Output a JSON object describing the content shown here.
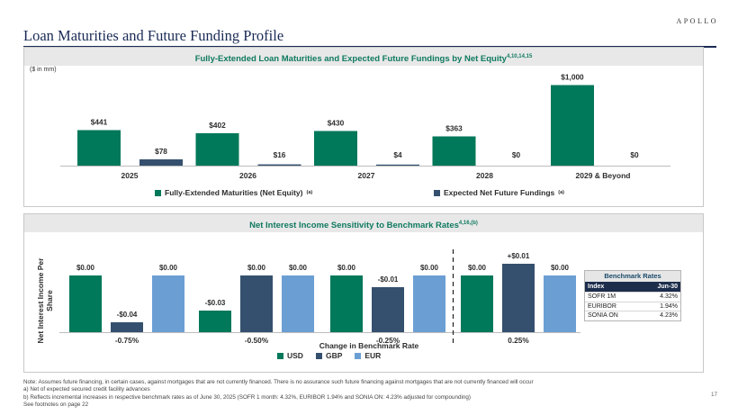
{
  "header": {
    "logo": "APOLLO",
    "title": "Loan Maturities and Future Funding Profile"
  },
  "top_panel": {
    "title": "Fully-Extended Loan Maturities and Expected Future Fundings by Net Equity",
    "title_refs": "4,10,14,15",
    "units": "($ in mm)"
  },
  "bottom_panel": {
    "title": "Net Interest Income Sensitivity to Benchmark Rates",
    "title_refs": "4,16,(b)",
    "ylabel_line1": "Net Interest Income Per",
    "ylabel_line2": "Share",
    "xlabel": "Change in Benchmark Rate"
  },
  "chart_data": [
    {
      "type": "bar",
      "title": "Fully-Extended Loan Maturities and Expected Future Fundings by Net Equity",
      "units": "$ in mm",
      "categories": [
        "2025",
        "2026",
        "2027",
        "2028",
        "2029 & Beyond"
      ],
      "series": [
        {
          "name": "Fully-Extended Maturities (Net Equity)",
          "footnote": "(a)",
          "color": "#00785a",
          "values": [
            441,
            402,
            430,
            363,
            1000
          ],
          "labels": [
            "$441",
            "$402",
            "$430",
            "$363",
            "$1,000"
          ]
        },
        {
          "name": "Expected Net Future Fundings",
          "footnote": "(a)",
          "color": "#34506e",
          "values": [
            78,
            16,
            4,
            0,
            0
          ],
          "labels": [
            "$78",
            "$16",
            "$4",
            "$0",
            "$0"
          ]
        }
      ],
      "ylim": [
        0,
        1000
      ],
      "grid": false,
      "legend": "bottom"
    },
    {
      "type": "bar",
      "title": "Net Interest Income Sensitivity to Benchmark Rates",
      "xlabel": "Change in Benchmark Rate",
      "ylabel": "Net Interest Income Per Share",
      "categories": [
        "-0.75%",
        "-0.50%",
        "-0.25%",
        "0.25%"
      ],
      "series": [
        {
          "name": "USD",
          "color": "#00785a",
          "values": [
            0.0,
            -0.03,
            0.0,
            0.0
          ],
          "labels": [
            "$0.00",
            "-$0.03",
            "$0.00",
            "$0.00"
          ]
        },
        {
          "name": "GBP",
          "color": "#34506e",
          "values": [
            -0.04,
            0.0,
            -0.01,
            0.01
          ],
          "labels": [
            "-$0.04",
            "$0.00",
            "-$0.01",
            "+$0.01"
          ]
        },
        {
          "name": "EUR",
          "color": "#6b9fd4",
          "values": [
            0.0,
            0.0,
            0.0,
            0.0
          ],
          "labels": [
            "$0.00",
            "$0.00",
            "$0.00",
            "$0.00"
          ]
        }
      ],
      "ylim": [
        -0.05,
        0.02
      ],
      "grid": false,
      "legend": "bottom",
      "note": "Zero-change bars are drawn at a uniform positive reference height, with negative and positive changes shown relative to it."
    }
  ],
  "benchmark_table": {
    "title": "Benchmark Rates",
    "header": [
      "Index",
      "Jun-30"
    ],
    "rows": [
      [
        "SOFR 1M",
        "4.32%"
      ],
      [
        "EURIBOR",
        "1.94%"
      ],
      [
        "SONIA ON",
        "4.23%"
      ]
    ]
  },
  "notes": {
    "line1": "Note: Assumes future financing, in certain cases, against mortgages that are not currently financed. There is no assurance such future financing against mortgages that are not currently financed will occur",
    "line2": "a)    Net of expected secured credit facility advances",
    "line3": "b)    Reflects incremental increases in respective benchmark rates as of June 30, 2025 (SOFR 1 month: 4.32%, EURIBOR 1.94% and SONIA ON: 4.23% adjusted for compounding)",
    "line4": "See footnotes on page 22"
  },
  "page_number": "17"
}
